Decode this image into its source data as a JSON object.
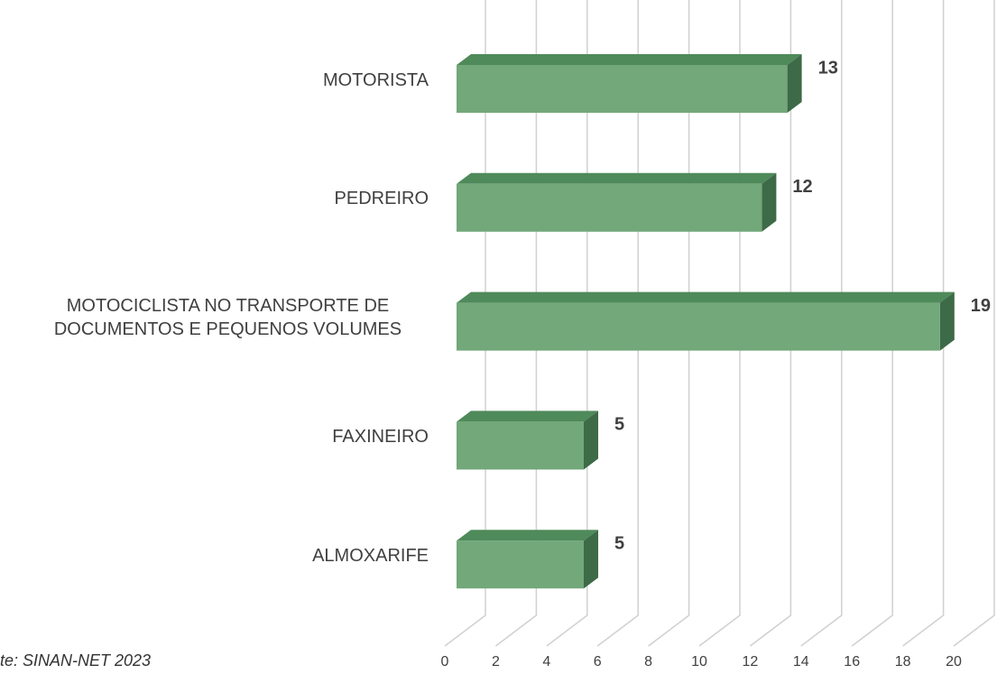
{
  "chart_data": {
    "type": "bar3d_horizontal",
    "categories": [
      "MOTORISTA",
      "PEDREIRO",
      "MOTOCICLISTA NO TRANSPORTE DE DOCUMENTOS E PEQUENOS VOLUMES",
      "FAXINEIRO",
      "ALMOXARIFE"
    ],
    "values": [
      13,
      12,
      19,
      5,
      5
    ],
    "color": "#72a87a",
    "xlim": [
      0,
      20
    ],
    "xticks": [
      0,
      2,
      4,
      6,
      8,
      10,
      12,
      14,
      16,
      18,
      20
    ],
    "grid": true,
    "source": "te: SINAN-NET 2023"
  }
}
